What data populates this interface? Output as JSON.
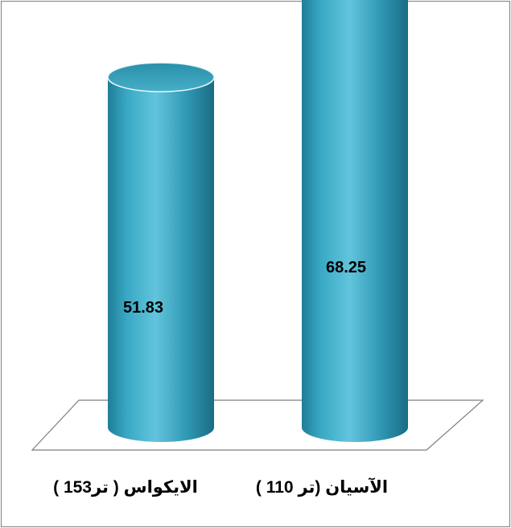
{
  "chart_data": {
    "type": "bar",
    "style": "3d-cylinder",
    "categories": [
      "الايكواس ( تر153 )",
      "الآسيان (تر 110 )"
    ],
    "values": [
      51.83,
      68.25
    ],
    "data_labels": [
      "51.83",
      "68.25"
    ],
    "title": "",
    "xlabel": "",
    "ylabel": "",
    "ylim": [
      0,
      80
    ],
    "grid": false,
    "legend": "none"
  },
  "colors": {
    "bar_body": "#2f9ab5",
    "bar_body_dark": "#1a6c84",
    "bar_highlight": "#5fc3da",
    "bar_top": "#3aa4bf",
    "floor_stroke": "#7f7f7f",
    "border": "#7f7f7f"
  }
}
